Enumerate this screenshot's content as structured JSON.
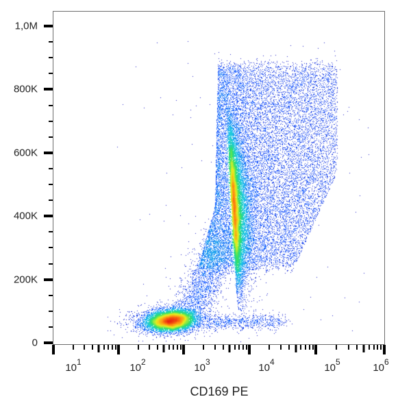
{
  "chart_data": {
    "type": "scatter",
    "subtype": "flow-cytometry-density-plot",
    "title": "",
    "xlabel": "CD169 PE",
    "ylabel": "",
    "xscale": "log",
    "xlim": [
      10,
      1000000
    ],
    "ylim": [
      0,
      1050000
    ],
    "x_ticks": [
      {
        "base": "10",
        "exp": "1",
        "value": 10
      },
      {
        "base": "10",
        "exp": "2",
        "value": 100
      },
      {
        "base": "10",
        "exp": "3",
        "value": 1000
      },
      {
        "base": "10",
        "exp": "4",
        "value": 10000
      },
      {
        "base": "10",
        "exp": "5",
        "value": 100000
      },
      {
        "base": "10",
        "exp": "6",
        "value": 1000000
      }
    ],
    "y_ticks": [
      {
        "label": "0",
        "value": 0
      },
      {
        "label": "200K",
        "value": 200000
      },
      {
        "label": "400K",
        "value": 400000
      },
      {
        "label": "600K",
        "value": 600000
      },
      {
        "label": "800K",
        "value": 800000
      },
      {
        "label": "1,0M",
        "value": 1000000
      }
    ],
    "grid": false,
    "legend": null,
    "colormap": [
      "#1a0fb8",
      "#1f5cff",
      "#22c8e8",
      "#2fe06a",
      "#e8f020",
      "#ff8c10",
      "#e82010"
    ],
    "populations": [
      {
        "name": "CD169-negative",
        "center_x": 550,
        "center_y": 65000,
        "peak_density": "high (red)",
        "spread_log_x": 0.22,
        "spread_y": 18000
      },
      {
        "name": "CD169-positive",
        "center_x": 4500,
        "center_y": 430000,
        "peak_density": "medium (orange/yellow)",
        "x_range": [
          2500,
          90000
        ],
        "y_range": [
          150000,
          880000
        ]
      },
      {
        "name": "bridge",
        "center_x": 2500,
        "center_y": 180000,
        "peak_density": "low (blue)"
      },
      {
        "name": "low-y tail",
        "x_range": [
          3000,
          40000
        ],
        "y_range": [
          40000,
          110000
        ],
        "peak_density": "low (blue)"
      }
    ]
  }
}
